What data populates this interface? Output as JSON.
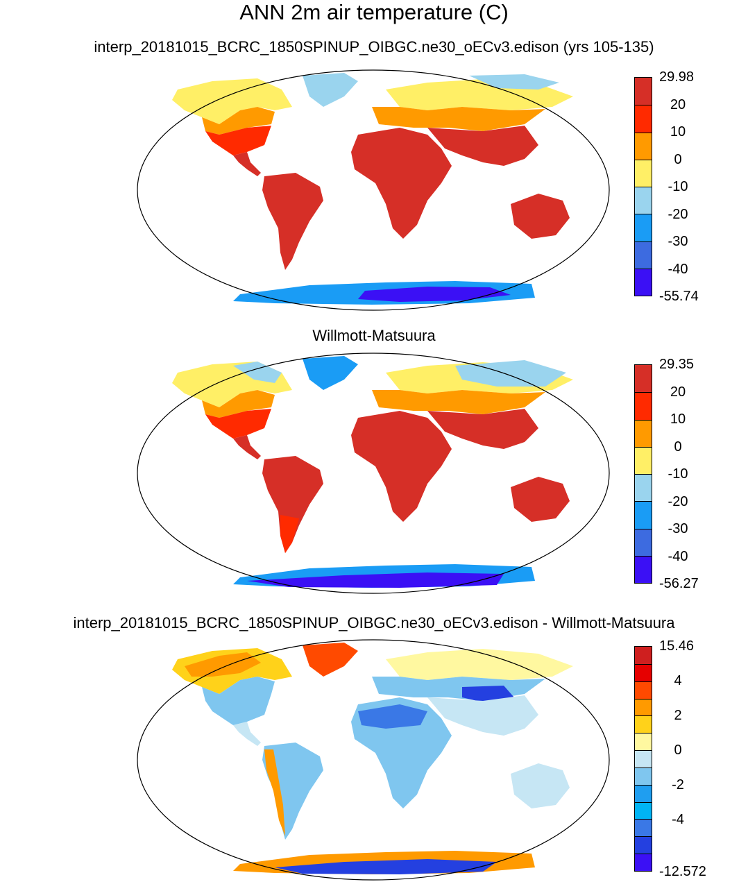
{
  "figure": {
    "title": "ANN 2m air temperature (C)"
  },
  "panels": [
    {
      "subtitle": "interp_20181015_BCRC_1850SPINUP_OIBGC.ne30_oECv3.edison (yrs 105-135)",
      "colorbar": {
        "colors": [
          "#d62f27",
          "#ff2a00",
          "#ff9a00",
          "#ffef66",
          "#9ad4ee",
          "#1a9cf5",
          "#3d6be0",
          "#3b10f5"
        ],
        "labels": [
          "29.98",
          "20",
          "10",
          "0",
          "-10",
          "-20",
          "-30",
          "-40",
          "-55.74"
        ]
      }
    },
    {
      "subtitle": "Willmott-Matsuura",
      "colorbar": {
        "colors": [
          "#d62f27",
          "#ff2a00",
          "#ff9a00",
          "#ffef66",
          "#9ad4ee",
          "#1a9cf5",
          "#3d6be0",
          "#3b10f5"
        ],
        "labels": [
          "29.35",
          "20",
          "10",
          "0",
          "-10",
          "-20",
          "-30",
          "-40",
          "-56.27"
        ]
      }
    },
    {
      "subtitle": "interp_20181015_BCRC_1850SPINUP_OIBGC.ne30_oECv3.edison - Willmott-Matsuura",
      "colorbar": {
        "colors": [
          "#cf1f1f",
          "#e60000",
          "#ff4a00",
          "#ff9a00",
          "#ffd21a",
          "#fff8a0",
          "#c6e6f4",
          "#7fc6ef",
          "#1f9ef0",
          "#00b4f5",
          "#3a78e6",
          "#2440e0",
          "#3b10f5"
        ],
        "labels": [
          "15.46",
          "4",
          "2",
          "0",
          "-2",
          "-4",
          "-12.572"
        ]
      }
    }
  ]
}
